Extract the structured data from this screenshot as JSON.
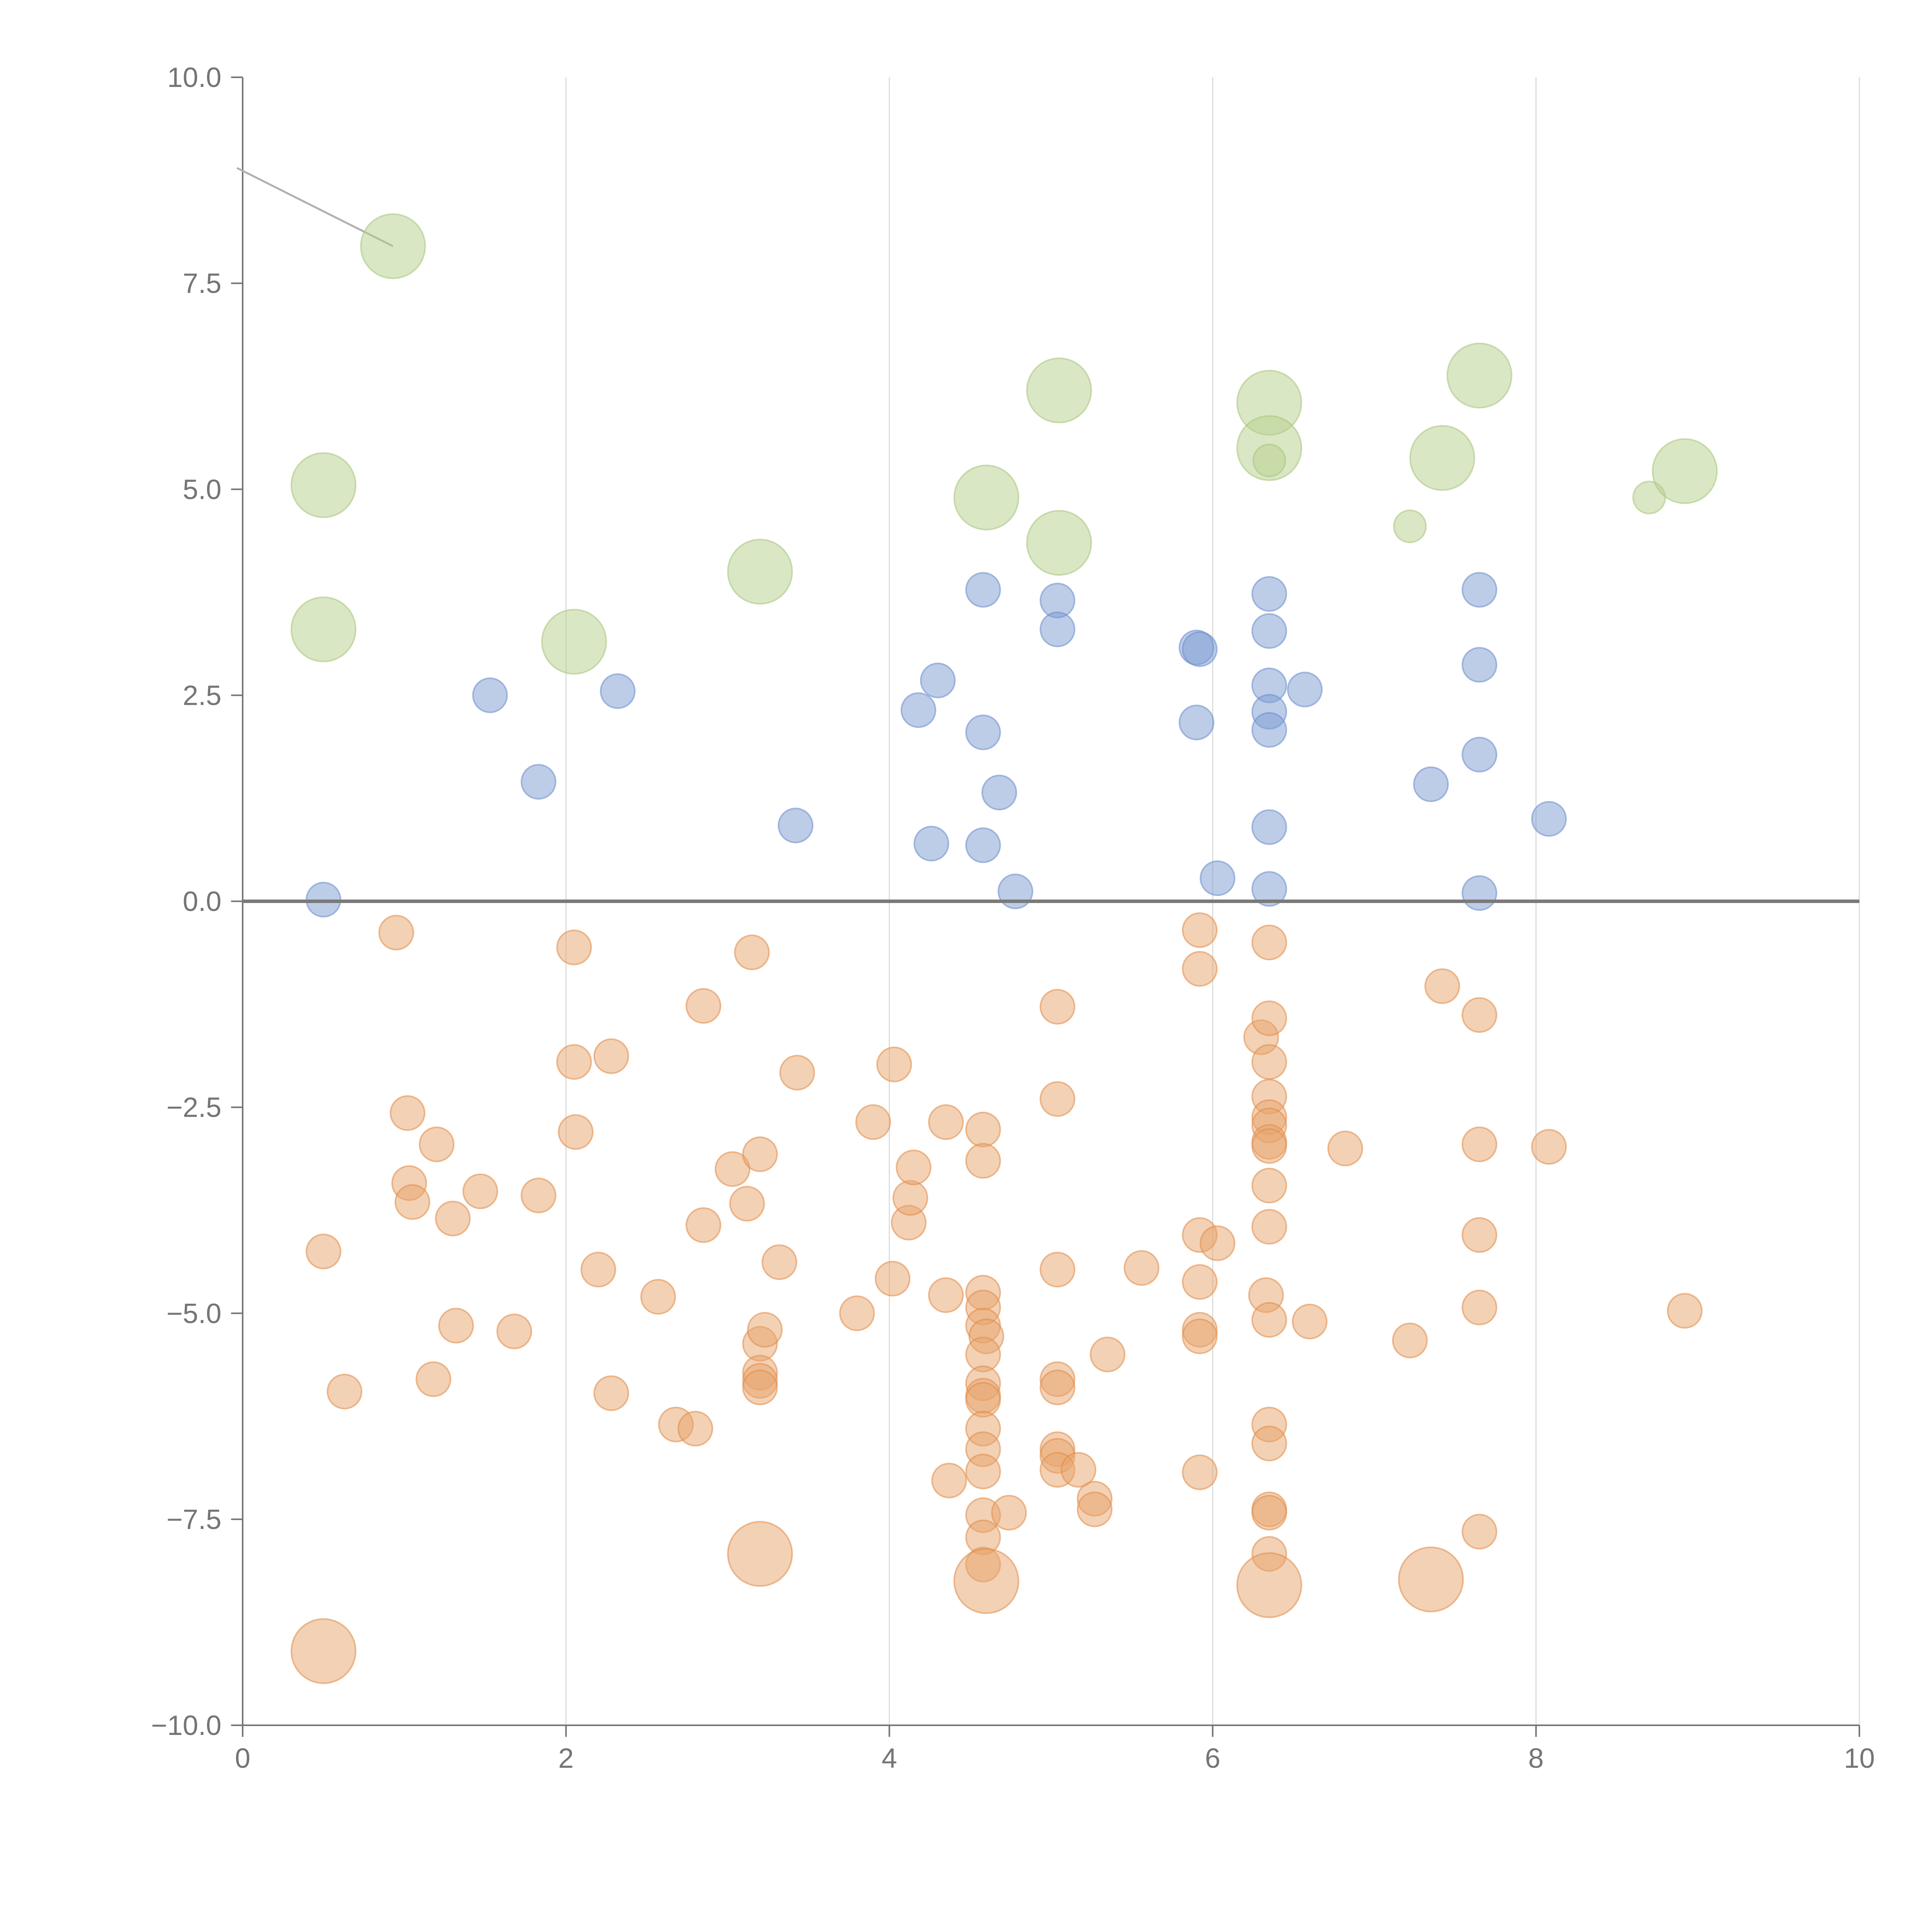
{
  "chart_data": {
    "type": "scatter",
    "title": "",
    "xlabel": "",
    "ylabel": "",
    "xlim": [
      0,
      10
    ],
    "ylim": [
      -10,
      10
    ],
    "x_ticks": [
      "0",
      "2",
      "4",
      "6",
      "8",
      "10"
    ],
    "y_ticks": [
      "10.0",
      "7.5",
      "5.0",
      "2.5",
      "0.0",
      "−2.5",
      "−5.0",
      "−7.5",
      "−10.0"
    ],
    "x_tick_values": [
      0,
      2,
      4,
      6,
      8,
      10
    ],
    "y_tick_values": [
      10,
      7.5,
      5,
      2.5,
      0,
      -2.5,
      -5,
      -7.5,
      -10
    ],
    "grid": "vertical",
    "reference_line_y": 0,
    "colors": {
      "green": "#b6d08c",
      "blue": "#7b9cd1",
      "orange": "#e8a36b",
      "axis": "#757575",
      "grid": "#dcdcdc"
    },
    "series": [
      {
        "name": "green",
        "color": "#b6d08c",
        "points": [
          [
            0.93,
            7.95,
            1.6
          ],
          [
            0.5,
            5.05,
            1.6
          ],
          [
            0.5,
            3.3,
            1.6
          ],
          [
            2.05,
            3.15,
            1.6
          ],
          [
            3.2,
            4.0,
            1.6
          ],
          [
            4.6,
            4.9,
            1.6
          ],
          [
            5.05,
            6.2,
            1.6
          ],
          [
            5.05,
            4.35,
            1.6
          ],
          [
            6.35,
            6.05,
            1.6
          ],
          [
            6.35,
            5.5,
            1.6
          ],
          [
            6.35,
            5.35,
            0.8
          ],
          [
            7.42,
            5.38,
            1.6
          ],
          [
            7.65,
            6.38,
            1.6
          ],
          [
            7.22,
            4.55,
            0.8
          ],
          [
            8.7,
            4.9,
            0.8
          ],
          [
            8.92,
            5.22,
            1.6
          ]
        ]
      },
      {
        "name": "blue",
        "color": "#7b9cd1",
        "points": [
          [
            0.5,
            0.02,
            0.85
          ],
          [
            1.53,
            2.5,
            0.85
          ],
          [
            1.83,
            1.45,
            0.85
          ],
          [
            2.32,
            2.55,
            0.85
          ],
          [
            3.42,
            0.92,
            0.85
          ],
          [
            4.18,
            2.32,
            0.85
          ],
          [
            4.26,
            0.7,
            0.85
          ],
          [
            4.3,
            2.68,
            0.85
          ],
          [
            4.58,
            3.78,
            0.85
          ],
          [
            4.58,
            2.05,
            0.85
          ],
          [
            4.58,
            0.68,
            0.85
          ],
          [
            4.68,
            1.32,
            0.85
          ],
          [
            4.78,
            0.12,
            0.85
          ],
          [
            5.04,
            3.65,
            0.85
          ],
          [
            5.04,
            3.3,
            0.85
          ],
          [
            5.9,
            3.08,
            0.85
          ],
          [
            5.92,
            3.06,
            0.85
          ],
          [
            5.9,
            2.17,
            0.85
          ],
          [
            6.03,
            0.28,
            0.85
          ],
          [
            6.35,
            3.73,
            0.85
          ],
          [
            6.35,
            3.28,
            0.85
          ],
          [
            6.35,
            2.62,
            0.85
          ],
          [
            6.35,
            2.3,
            0.85
          ],
          [
            6.35,
            2.08,
            0.85
          ],
          [
            6.35,
            0.9,
            0.85
          ],
          [
            6.35,
            0.15,
            0.85
          ],
          [
            6.57,
            2.57,
            0.85
          ],
          [
            7.35,
            1.42,
            0.85
          ],
          [
            7.65,
            3.78,
            0.85
          ],
          [
            7.65,
            2.87,
            0.85
          ],
          [
            7.65,
            1.78,
            0.85
          ],
          [
            7.65,
            0.1,
            0.85
          ],
          [
            8.08,
            1.0,
            0.85
          ]
        ]
      },
      {
        "name": "orange",
        "color": "#e8a36b",
        "points": [
          [
            0.95,
            -0.38,
            0.85
          ],
          [
            0.5,
            -4.25,
            0.85
          ],
          [
            0.63,
            -5.95,
            0.85
          ],
          [
            1.02,
            -2.57,
            0.85
          ],
          [
            1.03,
            -3.42,
            0.85
          ],
          [
            1.05,
            -3.65,
            0.85
          ],
          [
            1.18,
            -5.8,
            0.85
          ],
          [
            1.2,
            -2.95,
            0.85
          ],
          [
            1.3,
            -3.85,
            0.85
          ],
          [
            1.32,
            -5.15,
            0.85
          ],
          [
            1.47,
            -3.52,
            0.85
          ],
          [
            1.68,
            -5.22,
            0.85
          ],
          [
            1.83,
            -3.57,
            0.85
          ],
          [
            2.05,
            -0.56,
            0.85
          ],
          [
            2.05,
            -1.95,
            0.85
          ],
          [
            2.06,
            -2.8,
            0.85
          ],
          [
            2.2,
            -4.47,
            0.85
          ],
          [
            2.28,
            -1.88,
            0.85
          ],
          [
            2.28,
            -5.97,
            0.85
          ],
          [
            2.57,
            -4.8,
            0.85
          ],
          [
            2.68,
            -6.35,
            0.85
          ],
          [
            2.8,
            -6.4,
            0.85
          ],
          [
            2.85,
            -1.27,
            0.85
          ],
          [
            2.85,
            -3.93,
            0.85
          ],
          [
            3.03,
            -3.25,
            0.85
          ],
          [
            3.12,
            -3.67,
            0.85
          ],
          [
            3.15,
            -0.62,
            0.85
          ],
          [
            3.2,
            -3.07,
            0.85
          ],
          [
            3.2,
            -5.37,
            0.85
          ],
          [
            3.2,
            -5.72,
            0.85
          ],
          [
            3.2,
            -5.82,
            0.85
          ],
          [
            3.2,
            -5.9,
            0.85
          ],
          [
            3.23,
            -5.2,
            0.85
          ],
          [
            3.32,
            -4.38,
            0.85
          ],
          [
            3.43,
            -2.08,
            0.85
          ],
          [
            3.8,
            -5.0,
            0.85
          ],
          [
            3.9,
            -2.68,
            0.85
          ],
          [
            4.02,
            -4.58,
            0.85
          ],
          [
            4.03,
            -1.98,
            0.85
          ],
          [
            4.12,
            -3.9,
            0.85
          ],
          [
            4.13,
            -3.6,
            0.85
          ],
          [
            4.15,
            -3.23,
            0.85
          ],
          [
            4.35,
            -2.68,
            0.85
          ],
          [
            4.35,
            -4.78,
            0.85
          ],
          [
            4.37,
            -7.03,
            0.85
          ],
          [
            4.58,
            -2.77,
            0.85
          ],
          [
            4.58,
            -3.15,
            0.85
          ],
          [
            4.58,
            -4.75,
            0.85
          ],
          [
            4.58,
            -4.93,
            0.85
          ],
          [
            4.58,
            -5.15,
            0.85
          ],
          [
            4.6,
            -5.28,
            0.85
          ],
          [
            4.58,
            -5.5,
            0.85
          ],
          [
            4.58,
            -5.85,
            0.85
          ],
          [
            4.58,
            -6.0,
            0.85
          ],
          [
            4.58,
            -6.05,
            0.85
          ],
          [
            4.58,
            -6.4,
            0.85
          ],
          [
            4.58,
            -6.65,
            0.85
          ],
          [
            4.58,
            -6.92,
            0.85
          ],
          [
            4.58,
            -7.45,
            0.85
          ],
          [
            4.58,
            -7.72,
            0.85
          ],
          [
            4.58,
            -8.05,
            0.85
          ],
          [
            4.74,
            -7.42,
            0.85
          ],
          [
            5.04,
            -1.28,
            0.85
          ],
          [
            5.04,
            -2.4,
            0.85
          ],
          [
            5.04,
            -4.47,
            0.85
          ],
          [
            5.04,
            -5.8,
            0.85
          ],
          [
            5.04,
            -5.9,
            0.85
          ],
          [
            5.04,
            -6.65,
            0.85
          ],
          [
            5.04,
            -6.73,
            0.85
          ],
          [
            5.04,
            -6.9,
            0.85
          ],
          [
            5.17,
            -6.9,
            0.85
          ],
          [
            5.27,
            -7.25,
            0.85
          ],
          [
            5.27,
            -7.38,
            0.85
          ],
          [
            5.35,
            -5.5,
            0.85
          ],
          [
            5.56,
            -4.45,
            0.85
          ],
          [
            5.92,
            -0.35,
            0.85
          ],
          [
            5.92,
            -0.82,
            0.85
          ],
          [
            5.92,
            -4.05,
            0.85
          ],
          [
            5.92,
            -4.62,
            0.85
          ],
          [
            5.92,
            -5.2,
            0.85
          ],
          [
            5.92,
            -5.28,
            0.85
          ],
          [
            5.92,
            -6.93,
            0.85
          ],
          [
            6.03,
            -4.15,
            0.85
          ],
          [
            6.3,
            -1.65,
            0.85
          ],
          [
            6.35,
            -0.5,
            0.85
          ],
          [
            6.35,
            -1.42,
            0.85
          ],
          [
            6.35,
            -1.95,
            0.85
          ],
          [
            6.35,
            -2.37,
            0.85
          ],
          [
            6.35,
            -2.62,
            0.85
          ],
          [
            6.35,
            -2.72,
            0.85
          ],
          [
            6.35,
            -2.92,
            0.85
          ],
          [
            6.35,
            -2.97,
            0.85
          ],
          [
            6.35,
            -3.45,
            0.85
          ],
          [
            6.35,
            -3.95,
            0.85
          ],
          [
            6.33,
            -4.78,
            0.85
          ],
          [
            6.35,
            -5.08,
            0.85
          ],
          [
            6.35,
            -6.35,
            0.85
          ],
          [
            6.35,
            -6.58,
            0.85
          ],
          [
            6.35,
            -7.38,
            0.85
          ],
          [
            6.35,
            -7.42,
            0.85
          ],
          [
            6.35,
            -7.92,
            0.85
          ],
          [
            6.6,
            -5.1,
            0.85
          ],
          [
            6.82,
            -3.0,
            0.85
          ],
          [
            7.22,
            -5.33,
            0.85
          ],
          [
            7.42,
            -1.03,
            0.85
          ],
          [
            7.65,
            -1.38,
            0.85
          ],
          [
            7.65,
            -2.95,
            0.85
          ],
          [
            7.65,
            -4.05,
            0.85
          ],
          [
            7.65,
            -4.93,
            0.85
          ],
          [
            7.65,
            -7.65,
            0.85
          ],
          [
            8.08,
            -2.98,
            0.85
          ],
          [
            8.92,
            -4.97,
            0.85
          ],
          [
            0.5,
            -9.1,
            1.6
          ],
          [
            3.2,
            -7.92,
            1.6
          ],
          [
            4.6,
            -8.25,
            1.6
          ],
          [
            6.35,
            -8.3,
            1.6
          ],
          [
            7.35,
            -8.23,
            1.6
          ]
        ]
      }
    ],
    "point_format": "[x, y, relative_size]"
  }
}
